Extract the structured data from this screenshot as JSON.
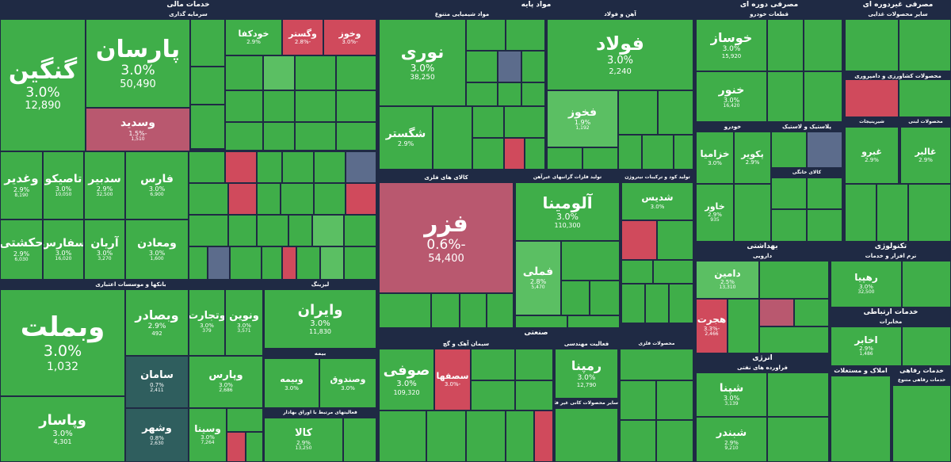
{
  "chart_data": {
    "type": "treemap",
    "colors": {
      "positive_strong": "#3fae49",
      "positive_mid": "#5bbf63",
      "positive_light": "#71c977",
      "negative": "#d04a5c",
      "negative_mid": "#b9586f",
      "neutral": "#5c6c8c",
      "frame": "#1f2a44",
      "dark": "#2f5e5e"
    },
    "sectors": [
      "خدمات مالی",
      "مواد پایه",
      "مصرفی دوره ای",
      "مصرفی غیردوره ای",
      "سرمایه گذاری",
      "مواد شیمیایی متنوع",
      "آهن و فولاد",
      "قطعات خودرو",
      "سایر محصولات غذایی",
      "محصولات کشاورزی و دامپروری",
      "شیرینیجات",
      "محصولات لبنی",
      "خودرو",
      "پلاستیک و لاستیک",
      "کالای خانگی",
      "تولید فلزات گرانبهای غیرآهن",
      "تولید کود و ترکیبات نیتروژن",
      "کالای های فلزی",
      "بانکها و موسسات اعتباری",
      "لیزینگ",
      "بیمه",
      "فعالیتهای مرتبط با اوراق بهادار",
      "صنعتی",
      "سیمان آهک و گچ",
      "فعالیت مهندسی",
      "محصولات فلزی",
      "سایر محصولات کانی غیر فلزی",
      "بهداشتی",
      "دارویی",
      "تکنولوژی",
      "نرم افزار و خدمات",
      "خدمات ارتباطی",
      "مخابرات",
      "انرژی",
      "فراورده های نفتی",
      "املاک و مستغلات",
      "خدمات رفاهی",
      "خدمات رفاهی متنوع"
    ],
    "tiles": [
      {
        "symbol": "گنگین",
        "change": "3.0%",
        "price": "12,890",
        "value": 3.0
      },
      {
        "symbol": "پارسان",
        "change": "3.0%",
        "price": "50,490",
        "value": 3.0
      },
      {
        "symbol": "وسدید",
        "change": "-1.5%",
        "price": "1,510",
        "value": -1.5
      },
      {
        "symbol": "وغدیر",
        "change": "2.9%",
        "price": "8,190",
        "value": 2.9
      },
      {
        "symbol": "تاصیکو",
        "change": "3.0%",
        "price": "10,050",
        "value": 3.0
      },
      {
        "symbol": "سدبیر",
        "change": "2.9%",
        "price": "32,500",
        "value": 2.9
      },
      {
        "symbol": "فارس",
        "change": "3.0%",
        "price": "6,900",
        "value": 3.0
      },
      {
        "symbol": "حکشتی",
        "change": "2.9%",
        "price": "6,030",
        "value": 2.9
      },
      {
        "symbol": "سفارس",
        "change": "3.0%",
        "price": "16,020",
        "value": 3.0
      },
      {
        "symbol": "آریان",
        "change": "3.0%",
        "price": "3,270",
        "value": 3.0
      },
      {
        "symbol": "ومعادن",
        "change": "3.0%",
        "price": "1,600",
        "value": 3.0
      },
      {
        "symbol": "وبملت",
        "change": "3.0%",
        "price": "1,032",
        "value": 3.0
      },
      {
        "symbol": "وپاسار",
        "change": "3.0%",
        "price": "4,301",
        "value": 3.0
      },
      {
        "symbol": "وبصادر",
        "change": "2.9%",
        "price": "492",
        "value": 2.9
      },
      {
        "symbol": "وتجارت",
        "change": "3.0%",
        "price": "379",
        "value": 3.0
      },
      {
        "symbol": "ونوین",
        "change": "3.0%",
        "price": "3,571",
        "value": 3.0
      },
      {
        "symbol": "سامان",
        "change": "0.7%",
        "price": "2,411",
        "value": 0.7
      },
      {
        "symbol": "وشهر",
        "change": "0.8%",
        "price": "2,630",
        "value": 0.8
      },
      {
        "symbol": "وپارس",
        "change": "3.0%",
        "price": "2,686",
        "value": 3.0
      },
      {
        "symbol": "وسینا",
        "change": "3.0%",
        "price": "7,264",
        "value": 3.0
      },
      {
        "symbol": "وایران",
        "change": "3.0%",
        "price": "11,830",
        "value": 3.0
      },
      {
        "symbol": "کالا",
        "change": "2.9%",
        "price": "13,250",
        "value": 2.9
      },
      {
        "symbol": "خودکفا",
        "change": "2.9%",
        "price": "",
        "value": 2.9
      },
      {
        "symbol": "وگستر",
        "change": "-2.8%",
        "price": "",
        "value": -2.8
      },
      {
        "symbol": "وخوز",
        "change": "-3.0%",
        "price": "",
        "value": -3.0
      },
      {
        "symbol": "نوری",
        "change": "3.0%",
        "price": "38,250",
        "value": 3.0
      },
      {
        "symbol": "شگستر",
        "change": "2.9%",
        "price": "",
        "value": 2.9
      },
      {
        "symbol": "فولاد",
        "change": "3.0%",
        "price": "2,240",
        "value": 3.0
      },
      {
        "symbol": "فخوز",
        "change": "1.9%",
        "price": "1,192",
        "value": 1.9
      },
      {
        "symbol": "فزر",
        "change": "-0.6%",
        "price": "54,400",
        "value": -0.6
      },
      {
        "symbol": "آلومینا",
        "change": "3.0%",
        "price": "110,300",
        "value": 3.0
      },
      {
        "symbol": "فملی",
        "change": "2.8%",
        "price": "5,470",
        "value": 2.8
      },
      {
        "symbol": "شدیس",
        "change": "3.0%",
        "price": "",
        "value": 3.0
      },
      {
        "symbol": "صوفی",
        "change": "3.0%",
        "price": "109,320",
        "value": 3.0
      },
      {
        "symbol": "سصفها",
        "change": "-3.0%",
        "price": "",
        "value": -3.0
      },
      {
        "symbol": "رمپنا",
        "change": "3.0%",
        "price": "12,790",
        "value": 3.0
      },
      {
        "symbol": "خوساز",
        "change": "3.0%",
        "price": "15,920",
        "value": 3.0
      },
      {
        "symbol": "خنور",
        "change": "3.0%",
        "price": "16,420",
        "value": 3.0
      },
      {
        "symbol": "خزامیا",
        "change": "3.0%",
        "price": "",
        "value": 3.0
      },
      {
        "symbol": "خاور",
        "change": "2.9%",
        "price": "935",
        "value": 2.9
      },
      {
        "symbol": "پکویر",
        "change": "2.9%",
        "price": "",
        "value": 2.9
      },
      {
        "symbol": "دامین",
        "change": "2.5%",
        "price": "13,310",
        "value": 2.5
      },
      {
        "symbol": "هجرت",
        "change": "-3.3%",
        "price": "2,466",
        "value": -3.3
      },
      {
        "symbol": "رهپیا",
        "change": "3.0%",
        "price": "32,500",
        "value": 3.0
      },
      {
        "symbol": "اخابر",
        "change": "2.9%",
        "price": "1,486",
        "value": 2.9
      },
      {
        "symbol": "شپنا",
        "change": "3.0%",
        "price": "3,139",
        "value": 3.0
      },
      {
        "symbol": "شبندر",
        "change": "2.9%",
        "price": "9,210",
        "value": 2.9
      },
      {
        "symbol": "غبرو",
        "change": "2.9%",
        "price": "",
        "value": 2.9
      },
      {
        "symbol": "غالبر",
        "change": "2.9%",
        "price": "",
        "value": 2.9
      },
      {
        "symbol": "وبیمه",
        "change": "3.0%",
        "price": "",
        "value": 3.0
      },
      {
        "symbol": "وصندوق",
        "change": "3.0%",
        "price": "",
        "value": 3.0
      }
    ]
  }
}
